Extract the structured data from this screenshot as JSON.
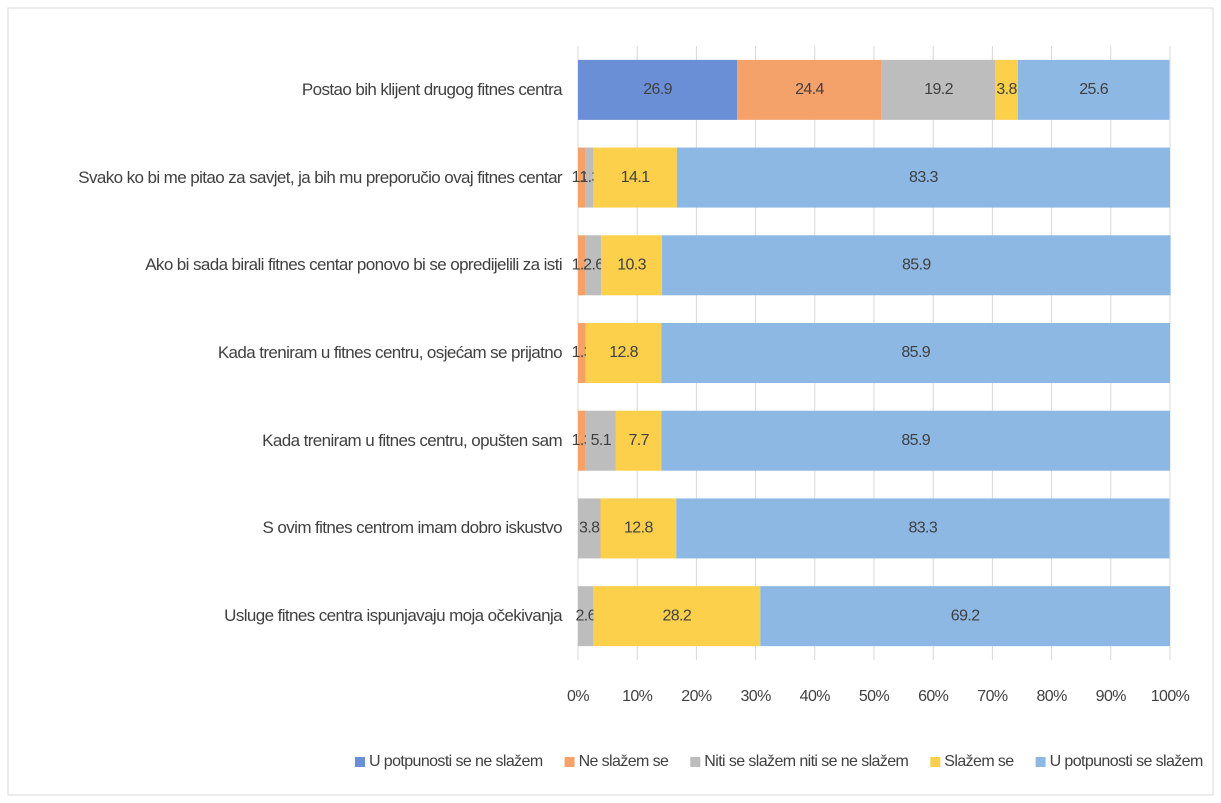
{
  "chart_data": {
    "type": "stacked_barh",
    "categories": [
      "Postao bih klijent drugog fitnes centra",
      "Svako ko bi me pitao za savjet, ja bih mu preporučio ovaj fitnes centar",
      "Ako bi sada birali fitnes centar ponovo bi se opredijelili za isti",
      "Kada treniram u fitnes centru, osjećam se prijatno",
      "Kada treniram u fitnes centru, opušten sam",
      "S ovim fitnes centrom imam dobro iskustvo",
      "Usluge fitnes centra ispunjavaju moja očekivanja"
    ],
    "series": [
      {
        "name": "U potpunosti se ne slažem",
        "color": "#6a8fd6",
        "values": [
          26.9,
          null,
          null,
          null,
          null,
          null,
          null
        ]
      },
      {
        "name": "Ne slažem se",
        "color": "#f4a26a",
        "values": [
          24.4,
          1.3,
          1.3,
          1.3,
          1.3,
          null,
          null
        ]
      },
      {
        "name": "Niti se slažem niti se ne slažem",
        "color": "#bdbdbd",
        "values": [
          19.2,
          1.3,
          2.6,
          null,
          5.1,
          3.8,
          2.6
        ]
      },
      {
        "name": "Slažem se",
        "color": "#fdd04b",
        "values": [
          3.8,
          14.1,
          10.3,
          12.8,
          7.7,
          12.8,
          28.2
        ]
      },
      {
        "name": "U potpunosti se slažem",
        "color": "#8db8e4",
        "values": [
          25.6,
          83.3,
          85.9,
          85.9,
          85.9,
          83.3,
          69.2
        ]
      }
    ],
    "xlim": [
      0,
      100
    ],
    "xticks": [
      {
        "value": 0,
        "label": "0%"
      },
      {
        "value": 10,
        "label": "10%"
      },
      {
        "value": 20,
        "label": "20%"
      },
      {
        "value": 30,
        "label": "30%"
      },
      {
        "value": 40,
        "label": "40%"
      },
      {
        "value": 50,
        "label": "50%"
      },
      {
        "value": 60,
        "label": "60%"
      },
      {
        "value": 70,
        "label": "70%"
      },
      {
        "value": 80,
        "label": "80%"
      },
      {
        "value": 90,
        "label": "90%"
      },
      {
        "value": 100,
        "label": "100%"
      }
    ],
    "grid": true,
    "legend": "bottom"
  }
}
